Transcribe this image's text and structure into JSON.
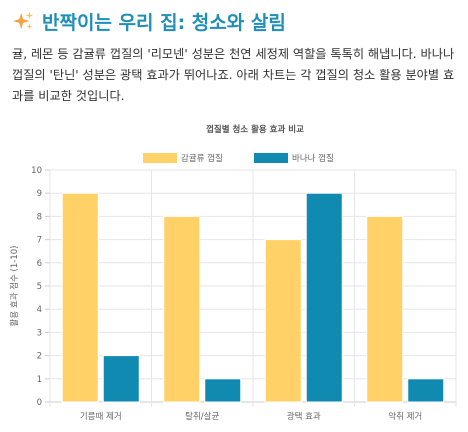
{
  "header": {
    "icon": "sparkles-icon",
    "title": "반짝이는 우리 집: 청소와 살림"
  },
  "description": "귤, 레몬 등 감귤류 껍질의 '리모넨' 성분은 천연 세정제 역할을 톡톡히 해냅니다. 바나나 껍질의 '탄닌' 성분은 광택 효과가 뛰어나죠. 아래 차트는 각 껍질의 청소 활용 분야별 효과를 비교한 것입니다.",
  "colors": {
    "title": "#1f8fb8",
    "citrus": "#ffd166",
    "banana": "#118ab2",
    "grid": "#e6e6e6"
  },
  "chart_data": {
    "type": "bar",
    "title": "껍질별 청소 활용 효과 비교",
    "xlabel": "",
    "ylabel": "활용 효과 점수 (1-10)",
    "ylim": [
      0,
      10
    ],
    "yticks": [
      0,
      1,
      2,
      3,
      4,
      5,
      6,
      7,
      8,
      9,
      10
    ],
    "grid": true,
    "legend_position": "top",
    "categories": [
      "기름때 제거",
      "탈취/살균",
      "광택 효과",
      "악취 제거"
    ],
    "series": [
      {
        "name": "감귤류 껍질",
        "color": "#ffd166",
        "values": [
          9,
          8,
          7,
          8
        ]
      },
      {
        "name": "바나나 껍질",
        "color": "#118ab2",
        "values": [
          2,
          1,
          9,
          1
        ]
      }
    ]
  }
}
